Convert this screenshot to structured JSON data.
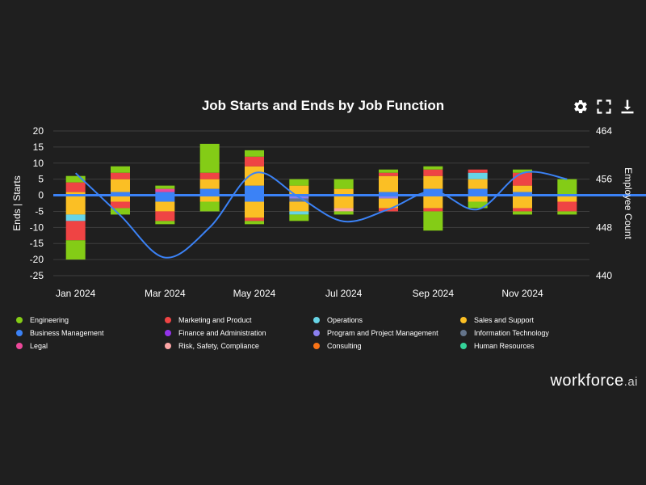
{
  "title": "Job Starts and Ends by Job Function",
  "toolbar": {
    "settings": "gear-icon",
    "fullscreen": "expand-icon",
    "download": "download-icon"
  },
  "brand": {
    "name": "workforce",
    "suffix": ".ai"
  },
  "colors": {
    "background": "#1f1f1f",
    "grid": "#3f3f3f",
    "zero_line": "#3b82f6",
    "line": "#3b82f6",
    "Engineering": "#84cc16",
    "Marketing and Product": "#ef4444",
    "Operations": "#67d4e6",
    "Sales and Support": "#fbbf24",
    "Business Management": "#3b82f6",
    "Finance and Administration": "#9333ea",
    "Program and Project Management": "#8b80f0",
    "Information Technology": "#64748b",
    "Legal": "#ec4899",
    "Risk, Safety, Compliance": "#fca5a5",
    "Consulting": "#f97316",
    "Human Resources": "#34d399"
  },
  "legend": [
    "Engineering",
    "Marketing and Product",
    "Operations",
    "Sales and Support",
    "Business Management",
    "Finance and Administration",
    "Program and Project Management",
    "Information Technology",
    "Legal",
    "Risk, Safety, Compliance",
    "Consulting",
    "Human Resources"
  ],
  "chart_data": {
    "type": "bar",
    "stacked": true,
    "title": "Job Starts and Ends by Job Function",
    "ylabel": "Ends | Starts",
    "ylabel_right": "Employee Count",
    "ylim": [
      -25,
      20
    ],
    "ylim_right": [
      440,
      464
    ],
    "yticks": [
      "20",
      "15",
      "10",
      "5",
      "0",
      "-5",
      "-10",
      "-15",
      "-20",
      "-25"
    ],
    "yticks_right": [
      "464",
      "456",
      "448",
      "440"
    ],
    "categories": [
      "Jan 2024",
      "Feb 2024",
      "Mar 2024",
      "Apr 2024",
      "May 2024",
      "Jun 2024",
      "Jul 2024",
      "Aug 2024",
      "Sep 2024",
      "Oct 2024",
      "Nov 2024",
      "Dec 2024"
    ],
    "x_tick_labels": [
      {
        "index": 0,
        "label": "Jan 2024"
      },
      {
        "index": 2,
        "label": "Mar 2024"
      },
      {
        "index": 4,
        "label": "May 2024"
      },
      {
        "index": 6,
        "label": "Jul 2024"
      },
      {
        "index": 8,
        "label": "Sep 2024"
      },
      {
        "index": 10,
        "label": "Nov 2024"
      }
    ],
    "series": [
      {
        "name": "Business Management",
        "values": [
          0,
          1,
          1,
          2,
          3,
          0,
          0,
          1,
          2,
          2,
          1,
          0
        ]
      },
      {
        "name": "Finance and Administration",
        "values": [
          0,
          0,
          0,
          0,
          0,
          0,
          0,
          0,
          0,
          0,
          0,
          0
        ]
      },
      {
        "name": "Program and Project Management",
        "values": [
          0,
          0,
          0,
          0,
          0,
          0,
          0,
          0,
          0,
          0,
          0,
          0
        ]
      },
      {
        "name": "Information Technology",
        "values": [
          0,
          0,
          0,
          0,
          0,
          0,
          0,
          0,
          0,
          0,
          0,
          0
        ]
      },
      {
        "name": "Sales and Support",
        "values": [
          1,
          4,
          0,
          3,
          6,
          3,
          2,
          5,
          4,
          3,
          2,
          0
        ]
      },
      {
        "name": "Legal",
        "values": [
          0,
          0,
          1,
          0,
          0,
          0,
          0,
          0,
          0,
          0,
          0,
          0
        ]
      },
      {
        "name": "Risk, Safety, Compliance",
        "values": [
          0,
          0,
          0,
          0,
          0,
          0,
          0,
          0,
          0,
          0,
          0,
          0
        ]
      },
      {
        "name": "Consulting",
        "values": [
          0,
          0,
          0,
          0,
          0,
          0,
          0,
          0,
          0,
          0,
          0,
          0
        ]
      },
      {
        "name": "Human Resources",
        "values": [
          0,
          0,
          0,
          0,
          0,
          0,
          0,
          0,
          0,
          0,
          0,
          0
        ]
      },
      {
        "name": "Operations",
        "values": [
          0,
          0,
          0,
          0,
          0,
          0,
          0,
          0,
          0,
          2,
          0,
          0
        ]
      },
      {
        "name": "Marketing and Product",
        "values": [
          3,
          2,
          0,
          2,
          3,
          0,
          0,
          1,
          2,
          1,
          4,
          0
        ]
      },
      {
        "name": "Engineering",
        "values": [
          2,
          2,
          1,
          9,
          2,
          2,
          3,
          1,
          1,
          0,
          1,
          5
        ]
      },
      {
        "name": "Business Management (ends)",
        "values": [
          0,
          0,
          -2,
          0,
          -2,
          0,
          0,
          0,
          0,
          0,
          0,
          0
        ]
      },
      {
        "name": "Program and Project Management (ends)",
        "values": [
          0,
          0,
          0,
          0,
          0,
          -1,
          0,
          -1,
          0,
          0,
          0,
          0
        ]
      },
      {
        "name": "Information Technology (ends)",
        "values": [
          0,
          0,
          0,
          0,
          0,
          -1,
          0,
          0,
          0,
          0,
          0,
          0
        ]
      },
      {
        "name": "Sales and Support (ends)",
        "values": [
          -6,
          -2,
          -3,
          -2,
          -5,
          -3,
          -4,
          -3,
          -4,
          -2,
          -4,
          -2
        ]
      },
      {
        "name": "Risk, Safety, Compliance (ends)",
        "values": [
          0,
          0,
          0,
          0,
          0,
          0,
          -1,
          0,
          0,
          0,
          0,
          0
        ]
      },
      {
        "name": "Operations (ends)",
        "values": [
          -2,
          0,
          0,
          0,
          0,
          -1,
          0,
          0,
          0,
          0,
          0,
          0
        ]
      },
      {
        "name": "Marketing and Product (ends)",
        "values": [
          -6,
          -2,
          -3,
          0,
          -1,
          0,
          0,
          -1,
          -1,
          0,
          -1,
          -3
        ]
      },
      {
        "name": "Engineering (ends)",
        "values": [
          -6,
          -2,
          -1,
          -3,
          -1,
          -2,
          -1,
          0,
          -6,
          -2,
          -1,
          -1
        ]
      }
    ],
    "employee_count": [
      457,
      450,
      443,
      448,
      457,
      453,
      449,
      451,
      454,
      451,
      457,
      456
    ]
  }
}
